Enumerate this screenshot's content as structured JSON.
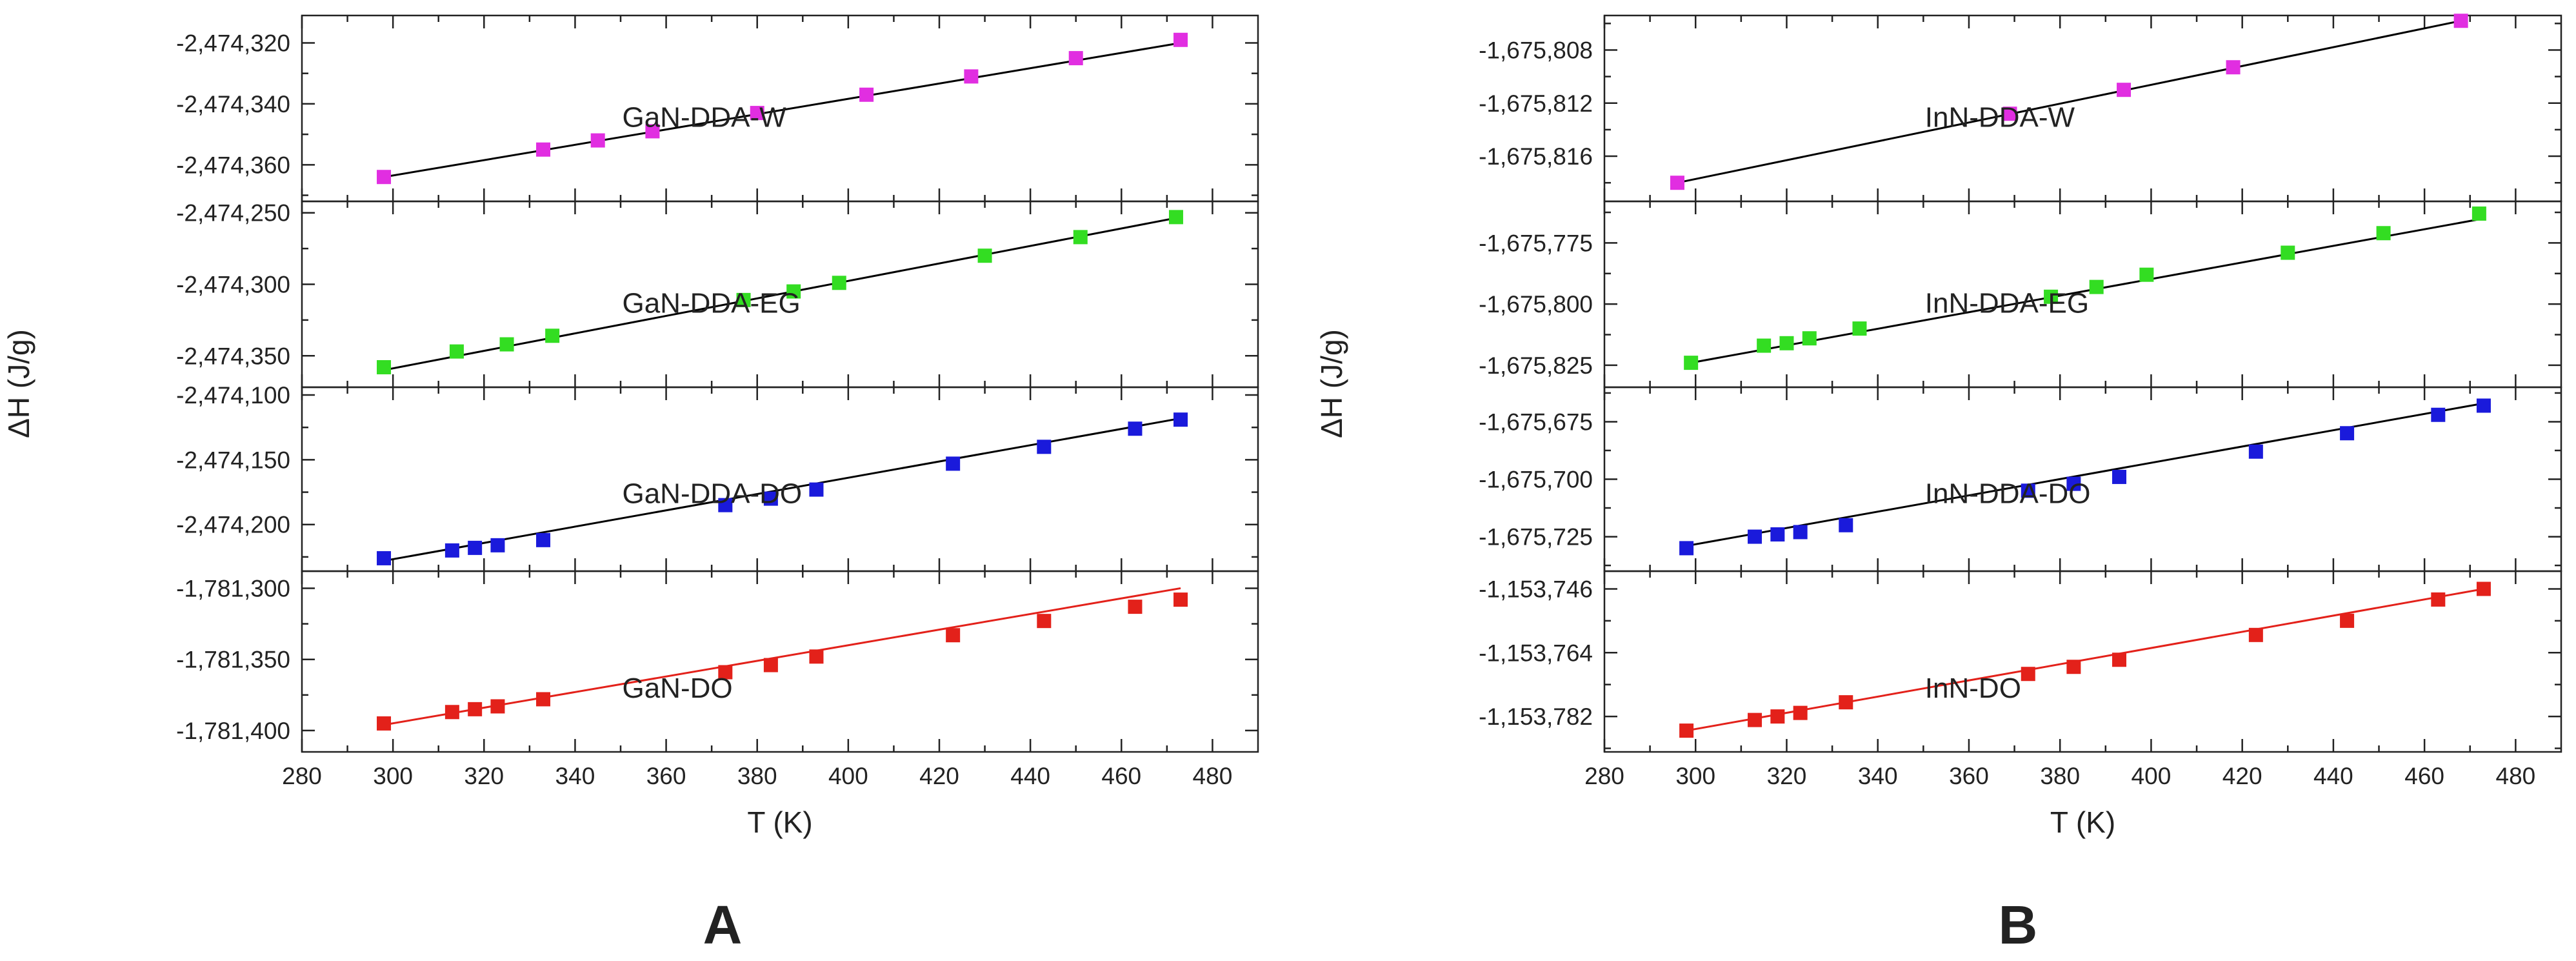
{
  "panels": [
    {
      "letter": "A",
      "xlabel": "T (K)",
      "ylabel": "ΔH (J/g)",
      "xlim": [
        280,
        490
      ],
      "xticks": [
        280,
        300,
        320,
        340,
        360,
        380,
        400,
        420,
        440,
        460,
        480
      ],
      "xtick_labels": [
        "280",
        "300",
        "320",
        "340",
        "360",
        "380",
        "400",
        "420",
        "440",
        "460",
        "480"
      ],
      "subplots": [
        {
          "label": "GaN-DDA-W",
          "color": "#e12ee1",
          "fit_color": "#000000",
          "ylim": [
            -2474372,
            -2474311
          ],
          "yticks": [
            -2474360,
            -2474340,
            -2474320
          ],
          "ytick_labels": [
            "-2,474,360",
            "-2,474,340",
            "-2,474,320"
          ],
          "x": [
            298,
            333,
            345,
            357,
            380,
            404,
            427,
            450,
            473
          ],
          "y": [
            -2474364,
            -2474355,
            -2474352,
            -2474349,
            -2474343,
            -2474337,
            -2474331,
            -2474325,
            -2474319
          ],
          "fit": {
            "x": [
              298,
              473
            ],
            "y": [
              -2474364,
              -2474320
            ]
          }
        },
        {
          "label": "GaN-DDA-EG",
          "color": "#33dd22",
          "fit_color": "#000000",
          "ylim": [
            -2474372,
            -2474242
          ],
          "yticks": [
            -2474350,
            -2474300,
            -2474250
          ],
          "ytick_labels": [
            "-2,474,350",
            "-2,474,300",
            "-2,474,250"
          ],
          "x": [
            298,
            314,
            325,
            335,
            377,
            388,
            398,
            430,
            451,
            472
          ],
          "y": [
            -2474358,
            -2474347,
            -2474342,
            -2474336,
            -2474311,
            -2474305,
            -2474299,
            -2474280,
            -2474267,
            -2474253
          ],
          "fit": {
            "x": [
              298,
              473
            ],
            "y": [
              -2474360,
              -2474253
            ]
          }
        },
        {
          "label": "GaN-DDA-DO",
          "color": "#1a1adb",
          "fit_color": "#000000",
          "ylim": [
            -2474236,
            -2474094
          ],
          "yticks": [
            -2474200,
            -2474150,
            -2474100
          ],
          "ytick_labels": [
            "-2,474,200",
            "-2,474,150",
            "-2,474,100"
          ],
          "x": [
            298,
            313,
            318,
            323,
            333,
            373,
            383,
            393,
            423,
            443,
            463,
            473
          ],
          "y": [
            -2474226,
            -2474220,
            -2474218,
            -2474216,
            -2474212,
            -2474185,
            -2474180,
            -2474173,
            -2474153,
            -2474140,
            -2474126,
            -2474119
          ],
          "fit": {
            "x": [
              298,
              473
            ],
            "y": [
              -2474228,
              -2474118
            ]
          }
        },
        {
          "label": "GaN-DO",
          "color": "#e3211a",
          "fit_color": "#e3211a",
          "ylim": [
            -1781415,
            -1781288
          ],
          "yticks": [
            -1781400,
            -1781350,
            -1781300
          ],
          "ytick_labels": [
            "-1,781,400",
            "-1,781,350",
            "-1,781,300"
          ],
          "x": [
            298,
            313,
            318,
            323,
            333,
            373,
            383,
            393,
            423,
            443,
            463,
            473
          ],
          "y": [
            -1781395,
            -1781387,
            -1781385,
            -1781383,
            -1781378,
            -1781359,
            -1781354,
            -1781348,
            -1781333,
            -1781323,
            -1781313,
            -1781308
          ],
          "fit": {
            "x": [
              298,
              473
            ],
            "y": [
              -1781396,
              -1781300
            ]
          }
        }
      ]
    },
    {
      "letter": "B",
      "xlabel": "T (K)",
      "ylabel": "ΔH (J/g)",
      "xlim": [
        280,
        490
      ],
      "xticks": [
        280,
        300,
        320,
        340,
        360,
        380,
        400,
        420,
        440,
        460,
        480
      ],
      "xtick_labels": [
        "280",
        "300",
        "320",
        "340",
        "360",
        "380",
        "400",
        "420",
        "440",
        "460",
        "480"
      ],
      "subplots": [
        {
          "label": "InN-DDA-W",
          "color": "#e12ee1",
          "fit_color": "#000000",
          "ylim": [
            -1675819.4,
            -1675805.4
          ],
          "yticks": [
            -1675816,
            -1675812,
            -1675808
          ],
          "ytick_labels": [
            "-1,675,816",
            "-1,675,812",
            "-1,675,808"
          ],
          "x": [
            296,
            369,
            394,
            418,
            468
          ],
          "y": [
            -1675818,
            -1675812.8,
            -1675811,
            -1675809.3,
            -1675805.8
          ],
          "fit": {
            "x": [
              296,
              468
            ],
            "y": [
              -1675818,
              -1675805.8
            ]
          }
        },
        {
          "label": "InN-DDA-EG",
          "color": "#33dd22",
          "fit_color": "#000000",
          "ylim": [
            -1675834,
            -1675758
          ],
          "yticks": [
            -1675825,
            -1675800,
            -1675775
          ],
          "ytick_labels": [
            "-1,675,825",
            "-1,675,800",
            "-1,675,775"
          ],
          "x": [
            299,
            315,
            320,
            325,
            336,
            378,
            388,
            399,
            430,
            451,
            472
          ],
          "y": [
            -1675824,
            -1675817,
            -1675816,
            -1675814,
            -1675810,
            -1675797,
            -1675793,
            -1675788,
            -1675779,
            -1675771,
            -1675763
          ],
          "fit": {
            "x": [
              299,
              473
            ],
            "y": [
              -1675824,
              -1675765
            ]
          }
        },
        {
          "label": "InN-DDA-DO",
          "color": "#1a1adb",
          "fit_color": "#000000",
          "ylim": [
            -1675740,
            -1675660
          ],
          "yticks": [
            -1675725,
            -1675700,
            -1675675
          ],
          "ytick_labels": [
            "-1,675,725",
            "-1,675,700",
            "-1,675,675"
          ],
          "x": [
            298,
            313,
            318,
            323,
            333,
            373,
            383,
            393,
            423,
            443,
            463,
            473
          ],
          "y": [
            -1675730,
            -1675725,
            -1675724,
            -1675723,
            -1675720,
            -1675705,
            -1675702,
            -1675699,
            -1675688,
            -1675680,
            -1675672,
            -1675668
          ],
          "fit": {
            "x": [
              298,
              473
            ],
            "y": [
              -1675729,
              -1675667
            ]
          }
        },
        {
          "label": "InN-DO",
          "color": "#e3211a",
          "fit_color": "#e3211a",
          "ylim": [
            -1153792,
            -1153741
          ],
          "yticks": [
            -1153782,
            -1153764,
            -1153746
          ],
          "ytick_labels": [
            "-1,153,782",
            "-1,153,764",
            "-1,153,746"
          ],
          "x": [
            298,
            313,
            318,
            323,
            333,
            373,
            383,
            393,
            423,
            443,
            463,
            473
          ],
          "y": [
            -1153786,
            -1153783,
            -1153782,
            -1153781,
            -1153778,
            -1153770,
            -1153768,
            -1153766,
            -1153759,
            -1153755,
            -1153749,
            -1153746
          ],
          "fit": {
            "x": [
              298,
              473
            ],
            "y": [
              -1153786,
              -1153746
            ]
          }
        }
      ]
    }
  ],
  "chart_data": [
    {
      "type": "scatter",
      "title": "A",
      "xlabel": "T (K)",
      "ylabel": "ΔH (J/g)",
      "xlim": [
        280,
        490
      ],
      "series": [
        {
          "name": "GaN-DDA-W",
          "x": [
            298,
            333,
            345,
            357,
            380,
            404,
            427,
            450,
            473
          ],
          "values": [
            -2474364,
            -2474355,
            -2474352,
            -2474349,
            -2474343,
            -2474337,
            -2474331,
            -2474325,
            -2474319
          ]
        },
        {
          "name": "GaN-DDA-EG",
          "x": [
            298,
            314,
            325,
            335,
            377,
            388,
            398,
            430,
            451,
            472
          ],
          "values": [
            -2474358,
            -2474347,
            -2474342,
            -2474336,
            -2474311,
            -2474305,
            -2474299,
            -2474280,
            -2474267,
            -2474253
          ]
        },
        {
          "name": "GaN-DDA-DO",
          "x": [
            298,
            313,
            318,
            323,
            333,
            373,
            383,
            393,
            423,
            443,
            463,
            473
          ],
          "values": [
            -2474226,
            -2474220,
            -2474218,
            -2474216,
            -2474212,
            -2474185,
            -2474180,
            -2474173,
            -2474153,
            -2474140,
            -2474126,
            -2474119
          ]
        },
        {
          "name": "GaN-DO",
          "x": [
            298,
            313,
            318,
            323,
            333,
            373,
            383,
            393,
            423,
            443,
            463,
            473
          ],
          "values": [
            -1781395,
            -1781387,
            -1781385,
            -1781383,
            -1781378,
            -1781359,
            -1781354,
            -1781348,
            -1781333,
            -1781323,
            -1781313,
            -1781308
          ]
        }
      ]
    },
    {
      "type": "scatter",
      "title": "B",
      "xlabel": "T (K)",
      "ylabel": "ΔH (J/g)",
      "xlim": [
        280,
        490
      ],
      "series": [
        {
          "name": "InN-DDA-W",
          "x": [
            296,
            369,
            394,
            418,
            468
          ],
          "values": [
            -1675818,
            -1675812.8,
            -1675811,
            -1675809.3,
            -1675805.8
          ]
        },
        {
          "name": "InN-DDA-EG",
          "x": [
            299,
            315,
            320,
            325,
            336,
            378,
            388,
            399,
            430,
            451,
            472
          ],
          "values": [
            -1675824,
            -1675817,
            -1675816,
            -1675814,
            -1675810,
            -1675797,
            -1675793,
            -1675788,
            -1675779,
            -1675771,
            -1675763
          ]
        },
        {
          "name": "InN-DDA-DO",
          "x": [
            298,
            313,
            318,
            323,
            333,
            373,
            383,
            393,
            423,
            443,
            463,
            473
          ],
          "values": [
            -1675730,
            -1675725,
            -1675724,
            -1675723,
            -1675720,
            -1675705,
            -1675702,
            -1675699,
            -1675688,
            -1675680,
            -1675672,
            -1675668
          ]
        },
        {
          "name": "InN-DO",
          "x": [
            298,
            313,
            318,
            323,
            333,
            373,
            383,
            393,
            423,
            443,
            463,
            473
          ],
          "values": [
            -1153786,
            -1153783,
            -1153782,
            -1153781,
            -1153778,
            -1153770,
            -1153768,
            -1153766,
            -1153759,
            -1153755,
            -1153749,
            -1153746
          ]
        }
      ]
    }
  ]
}
